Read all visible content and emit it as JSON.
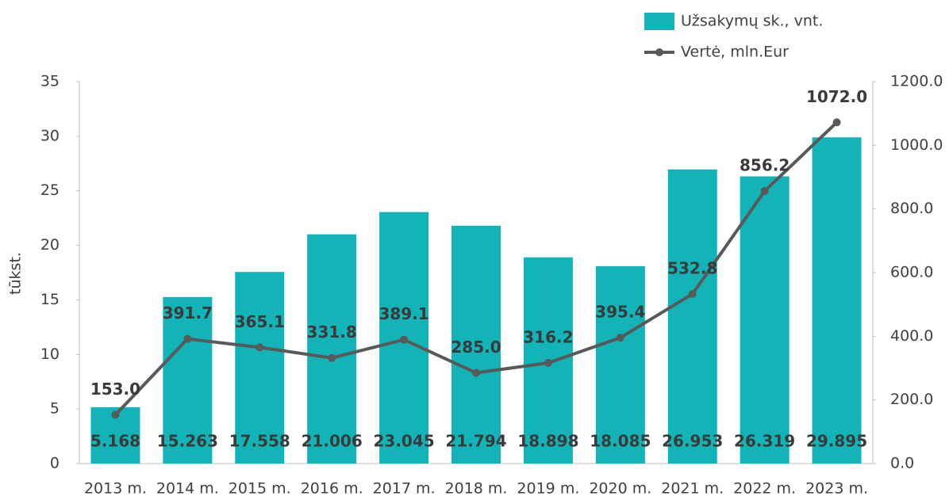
{
  "chart_data": {
    "type": "combo",
    "categories": [
      "2013 m.",
      "2014 m.",
      "2015 m.",
      "2016 m.",
      "2017 m.",
      "2018 m.",
      "2019 m.",
      "2020 m.",
      "2021 m.",
      "2022 m.",
      "2023 m."
    ],
    "ylabel": "tūkst.",
    "ylim": [
      0,
      35
    ],
    "yticks": [
      0,
      5,
      10,
      15,
      20,
      25,
      30,
      35
    ],
    "y2lim": [
      0,
      1200
    ],
    "y2ticks": [
      {
        "value": 0,
        "label": "0.0"
      },
      {
        "value": 200,
        "label": "200.0"
      },
      {
        "value": 400,
        "label": "400.0"
      },
      {
        "value": 600,
        "label": "600.0"
      },
      {
        "value": 800,
        "label": "800.0"
      },
      {
        "value": 1000,
        "label": "1000.0"
      },
      {
        "value": 1200,
        "label": "1200.0"
      }
    ],
    "legend": "top-right",
    "series": [
      {
        "name": "Užsakymų sk., vnt.",
        "type": "bar",
        "axis": "y",
        "color": "#12b4b8",
        "values": [
          5.168,
          15.263,
          17.558,
          21.006,
          23.045,
          21.794,
          18.898,
          18.085,
          26.953,
          26.319,
          29.895
        ]
      },
      {
        "name": "Vertė, mln.Eur",
        "type": "line",
        "axis": "y2",
        "color": "#595959",
        "values": [
          153,
          391.7,
          365.1,
          331.8,
          389.1,
          285,
          316.2,
          395.4,
          532.8,
          856.2,
          1072
        ],
        "value_labels": [
          "153.0",
          "391.7",
          "365.1",
          "331.8",
          "389.1",
          "285.0",
          "316.2",
          "395.4",
          "532.8",
          "856.2",
          "1072.0"
        ]
      }
    ]
  }
}
